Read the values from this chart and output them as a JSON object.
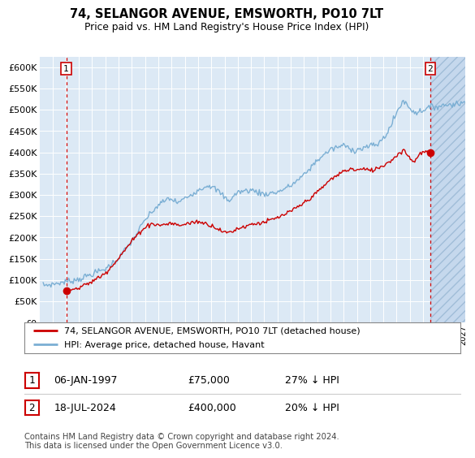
{
  "title": "74, SELANGOR AVENUE, EMSWORTH, PO10 7LT",
  "subtitle": "Price paid vs. HM Land Registry's House Price Index (HPI)",
  "hpi_color": "#7bafd4",
  "price_color": "#cc0000",
  "marker_color": "#cc0000",
  "bg_color": "#dce9f5",
  "legend_label1": "74, SELANGOR AVENUE, EMSWORTH, PO10 7LT (detached house)",
  "legend_label2": "HPI: Average price, detached house, Havant",
  "sale1_label": "06-JAN-1997",
  "sale1_price": "£75,000",
  "sale1_note": "27% ↓ HPI",
  "sale2_label": "18-JUL-2024",
  "sale2_price": "£400,000",
  "sale2_note": "20% ↓ HPI",
  "footer": "Contains HM Land Registry data © Crown copyright and database right 2024.\nThis data is licensed under the Open Government Licence v3.0.",
  "ylim": [
    0,
    625000
  ],
  "yticks": [
    0,
    50000,
    100000,
    150000,
    200000,
    250000,
    300000,
    350000,
    400000,
    450000,
    500000,
    550000,
    600000
  ],
  "sale1_x": 1997.04,
  "sale1_y": 75000,
  "sale2_x": 2024.54,
  "sale2_y": 400000,
  "vline1_x": 1997.04,
  "vline2_x": 2024.54,
  "hatch_start": 2024.54,
  "hatch_end": 2027.2,
  "xmin": 1995.3,
  "xmax": 2027.2
}
